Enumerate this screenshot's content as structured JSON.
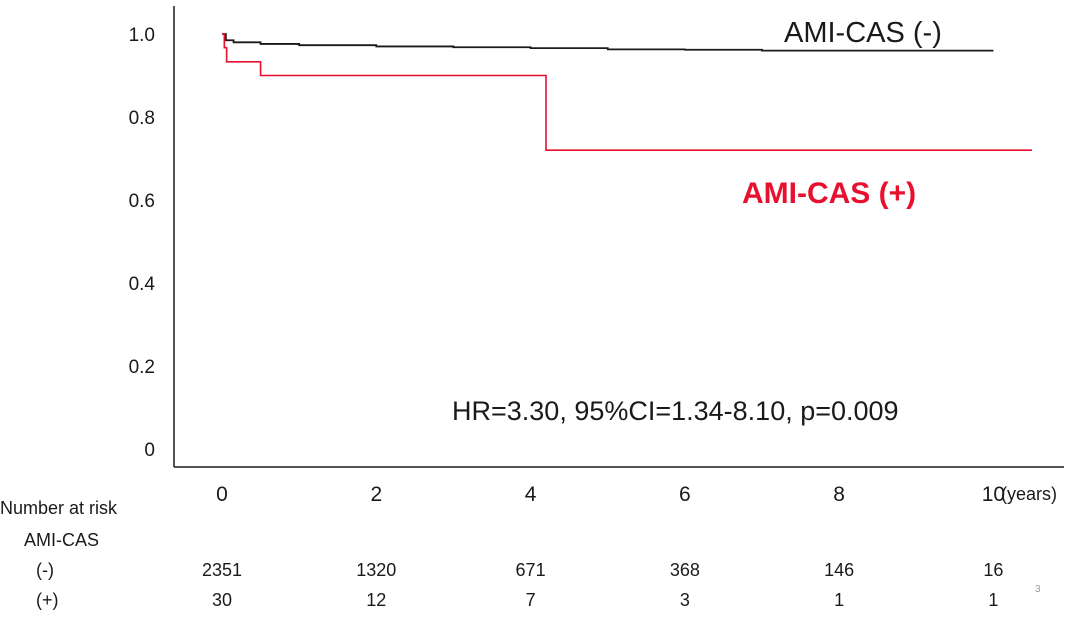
{
  "chart_data": {
    "type": "line",
    "subtype": "kaplan-meier",
    "title": "",
    "xlabel": "",
    "ylabel": "",
    "x_unit": "(years)",
    "xlim": [
      0,
      10.5
    ],
    "ylim": [
      0,
      1.0
    ],
    "x_ticks": [
      0,
      2,
      4,
      6,
      8,
      10
    ],
    "y_ticks": [
      {
        "value": 0,
        "label": "0"
      },
      {
        "value": 0.2,
        "label": "0.2"
      },
      {
        "value": 0.4,
        "label": "0.4"
      },
      {
        "value": 0.6,
        "label": "0.6"
      },
      {
        "value": 0.8,
        "label": "0.8"
      },
      {
        "value": 1.0,
        "label": "1.0"
      }
    ],
    "grid": false,
    "series": [
      {
        "name": "AMI-CAS (-)",
        "color": "#1a1a1a",
        "x": [
          0,
          0.05,
          0.15,
          0.5,
          1,
          2,
          3,
          4,
          5,
          6,
          7,
          8,
          9,
          10
        ],
        "y": [
          1.0,
          0.985,
          0.98,
          0.976,
          0.973,
          0.97,
          0.968,
          0.966,
          0.963,
          0.962,
          0.96,
          0.96,
          0.96,
          0.96
        ]
      },
      {
        "name": "AMI-CAS (+)",
        "color": "#e8102f",
        "x": [
          0,
          0.03,
          0.06,
          0.5,
          4.2,
          10.5
        ],
        "y": [
          1.0,
          0.967,
          0.933,
          0.9,
          0.72,
          0.72
        ]
      }
    ],
    "annotation": "HR=3.30, 95%CI=1.34-8.10, p=0.009",
    "risk_table": {
      "title": "Number at risk",
      "group_label": "AMI-CAS",
      "rows": [
        {
          "label": "(-)",
          "values": [
            "2351",
            "1320",
            "671",
            "368",
            "146",
            "16"
          ]
        },
        {
          "label": "(+)",
          "values": [
            "30",
            "12",
            "7",
            "3",
            "1",
            "1"
          ]
        }
      ]
    }
  },
  "slide_number": "3"
}
